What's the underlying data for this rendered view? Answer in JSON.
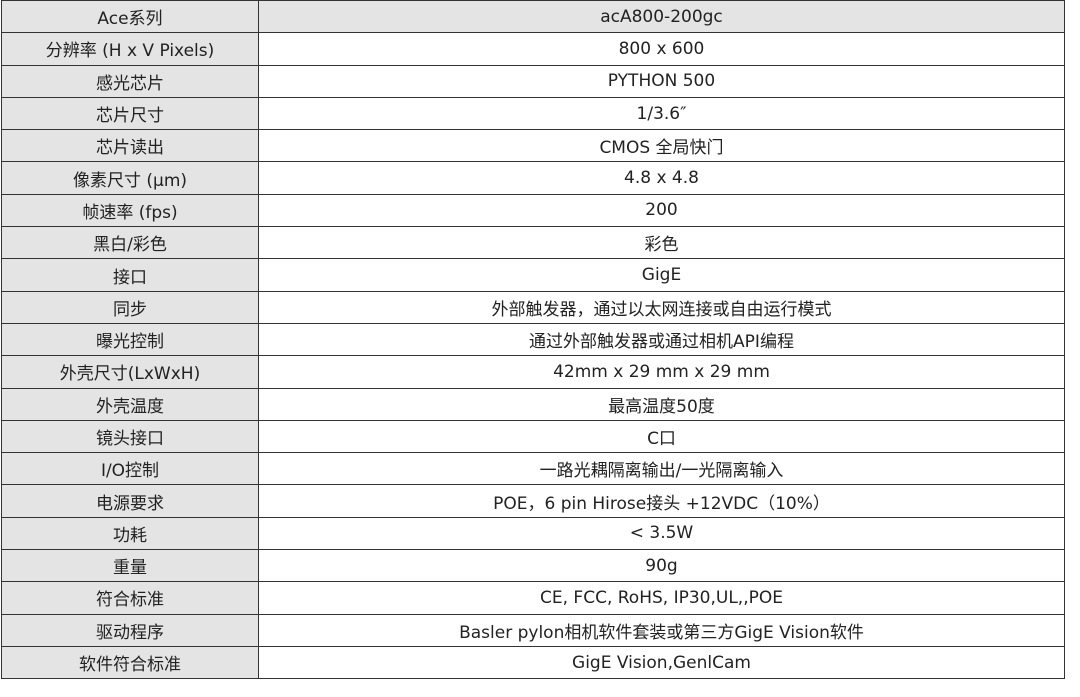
{
  "table": {
    "header": {
      "label": "Ace系列",
      "value": "acA800-200gc"
    },
    "rows": [
      {
        "label": "分辨率 (H x V Pixels)",
        "value": "800 x 600"
      },
      {
        "label": "感光芯片",
        "value": "PYTHON 500"
      },
      {
        "label": "芯片尺寸",
        "value": "1/3.6″"
      },
      {
        "label": "芯片读出",
        "value": "CMOS 全局快门"
      },
      {
        "label": "像素尺寸 (µm)",
        "value": "4.8 x 4.8"
      },
      {
        "label": "帧速率 (fps)",
        "value": "200"
      },
      {
        "label": "黑白/彩色",
        "value": "彩色"
      },
      {
        "label": "接口",
        "value": "GigE"
      },
      {
        "label": "同步",
        "value": "外部触发器，通过以太网连接或自由运行模式"
      },
      {
        "label": "曝光控制",
        "value": "通过外部触发器或通过相机API编程"
      },
      {
        "label": "外壳尺寸(LxWxH)",
        "value": "42mm x 29 mm x 29 mm"
      },
      {
        "label": "外壳温度",
        "value": "最高温度50度"
      },
      {
        "label": "镜头接口",
        "value": "C口"
      },
      {
        "label": "I/O控制",
        "value": "一路光耦隔离输出/一光隔离输入"
      },
      {
        "label": "电源要求",
        "value": "POE，6 pin Hirose接头 +12VDC（10%）"
      },
      {
        "label": "功耗",
        "value": "< 3.5W"
      },
      {
        "label": "重量",
        "value": "90g"
      },
      {
        "label": "符合标准",
        "value": "CE, FCC, RoHS, IP30,UL,,POE"
      },
      {
        "label": "驱动程序",
        "value": "Basler pylon相机软件套装或第三方GigE Vision软件"
      },
      {
        "label": "软件符合标准",
        "value": "GigE Vision,GenlCam"
      }
    ]
  }
}
